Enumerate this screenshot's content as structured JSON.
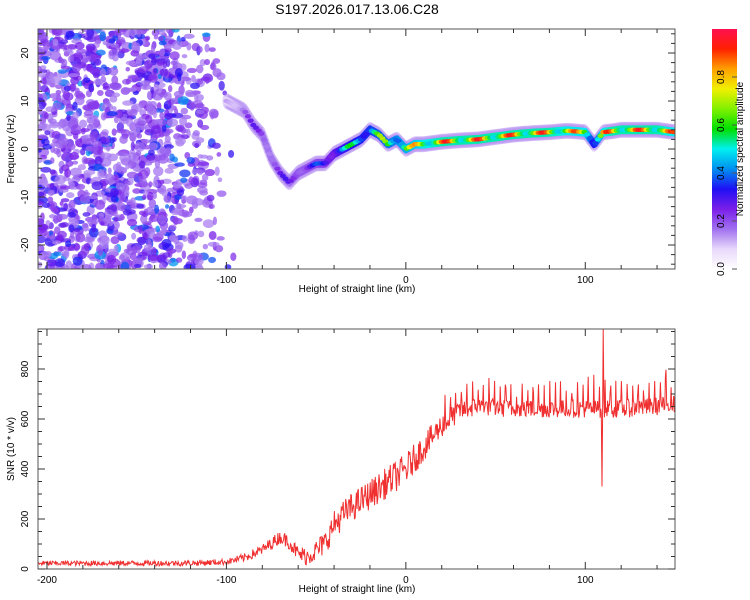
{
  "title": "S197.2026.017.13.06.C28",
  "chart_data": [
    {
      "type": "heatmap",
      "name": "spectrogram",
      "xlabel": "Height of straight line (km)",
      "ylabel": "Frequency (Hz)",
      "xlim": [
        -205,
        150
      ],
      "ylim": [
        -25,
        25
      ],
      "xticks": [
        -200,
        -100,
        0,
        100
      ],
      "xtick_labels": [
        "-200",
        "-100",
        "0",
        "100"
      ],
      "x_minor_step": 20,
      "yticks": [
        -20,
        -10,
        0,
        10,
        20
      ],
      "ytick_labels": [
        "-20",
        "-10",
        "0",
        "10",
        "20"
      ],
      "y_minor_step": 2,
      "colorbar": {
        "label": "Normalized spectral amplitude",
        "range": [
          0.0,
          1.0
        ],
        "ticks": [
          0.0,
          0.2,
          0.4,
          0.6,
          0.8
        ],
        "tick_labels": [
          "0.0",
          "0.2",
          "0.4",
          "0.6",
          "0.8"
        ],
        "colormap": [
          "#ffffff",
          "#e8d8fb",
          "#a070f0",
          "#7a1ee8",
          "#1e10f5",
          "#0090f0",
          "#00f0f0",
          "#00e000",
          "#80f000",
          "#f0f000",
          "#ffa000",
          "#ff2000",
          "#ff1050"
        ]
      },
      "noise_region_km": [
        -205,
        -95
      ],
      "ridge": {
        "x": [
          -100,
          -95,
          -90,
          -85,
          -80,
          -75,
          -70,
          -65,
          -60,
          -55,
          -50,
          -45,
          -40,
          -35,
          -30,
          -25,
          -20,
          -15,
          -10,
          -5,
          0,
          5,
          10,
          20,
          30,
          40,
          50,
          60,
          70,
          80,
          90,
          100,
          105,
          110,
          115,
          120,
          130,
          140,
          150
        ],
        "y": [
          10,
          9,
          8,
          5,
          3,
          -2,
          -5,
          -7,
          -5,
          -4,
          -3,
          -3,
          -1,
          0,
          1,
          2,
          4,
          3,
          1,
          2,
          0,
          1,
          1,
          1.5,
          1.8,
          2,
          2.5,
          3,
          3.3,
          3.5,
          3.8,
          3.5,
          1,
          3.5,
          3.7,
          4,
          4,
          4,
          3.5
        ],
        "amplitude": [
          0.15,
          0.2,
          0.25,
          0.28,
          0.3,
          0.3,
          0.3,
          0.3,
          0.35,
          0.35,
          0.38,
          0.4,
          0.5,
          0.55,
          0.6,
          0.62,
          0.65,
          0.7,
          0.72,
          0.75,
          0.8,
          0.85,
          0.9,
          0.95,
          0.95,
          0.95,
          0.95,
          0.95,
          0.95,
          0.95,
          0.9,
          0.9,
          0.6,
          0.9,
          0.95,
          0.95,
          0.95,
          0.95,
          0.9
        ]
      }
    },
    {
      "type": "line",
      "name": "snr",
      "xlabel": "Height of straight line (km)",
      "ylabel": "SNR (10 * v/v)",
      "xlim": [
        -205,
        150
      ],
      "ylim": [
        0,
        960
      ],
      "xticks": [
        -200,
        -100,
        0,
        100
      ],
      "xtick_labels": [
        "-200",
        "-100",
        "0",
        "100"
      ],
      "x_minor_step": 20,
      "yticks": [
        0,
        200,
        400,
        600,
        800
      ],
      "ytick_labels": [
        "0",
        "200",
        "400",
        "600",
        "800"
      ],
      "y_minor_step": 50,
      "series": [
        {
          "name": "SNR",
          "color": "#f03030",
          "envelope_x": [
            -205,
            -120,
            -100,
            -90,
            -80,
            -70,
            -65,
            -60,
            -55,
            -50,
            -45,
            -40,
            -35,
            -30,
            -20,
            -10,
            0,
            10,
            20,
            30,
            40,
            60,
            80,
            100,
            108,
            110,
            112,
            120,
            140,
            150
          ],
          "envelope_y": [
            20,
            20,
            25,
            40,
            70,
            120,
            100,
            50,
            40,
            60,
            90,
            160,
            200,
            230,
            280,
            330,
            380,
            470,
            560,
            620,
            640,
            630,
            630,
            630,
            630,
            630,
            630,
            630,
            640,
            650
          ],
          "noise_amplitude_x": [
            -205,
            -100,
            -60,
            -40,
            0,
            20,
            40,
            150
          ],
          "noise_amplitude_y": [
            12,
            15,
            40,
            70,
            80,
            60,
            45,
            45
          ],
          "spike": {
            "x_km": 110,
            "max": 960,
            "min": 330
          }
        }
      ]
    }
  ]
}
